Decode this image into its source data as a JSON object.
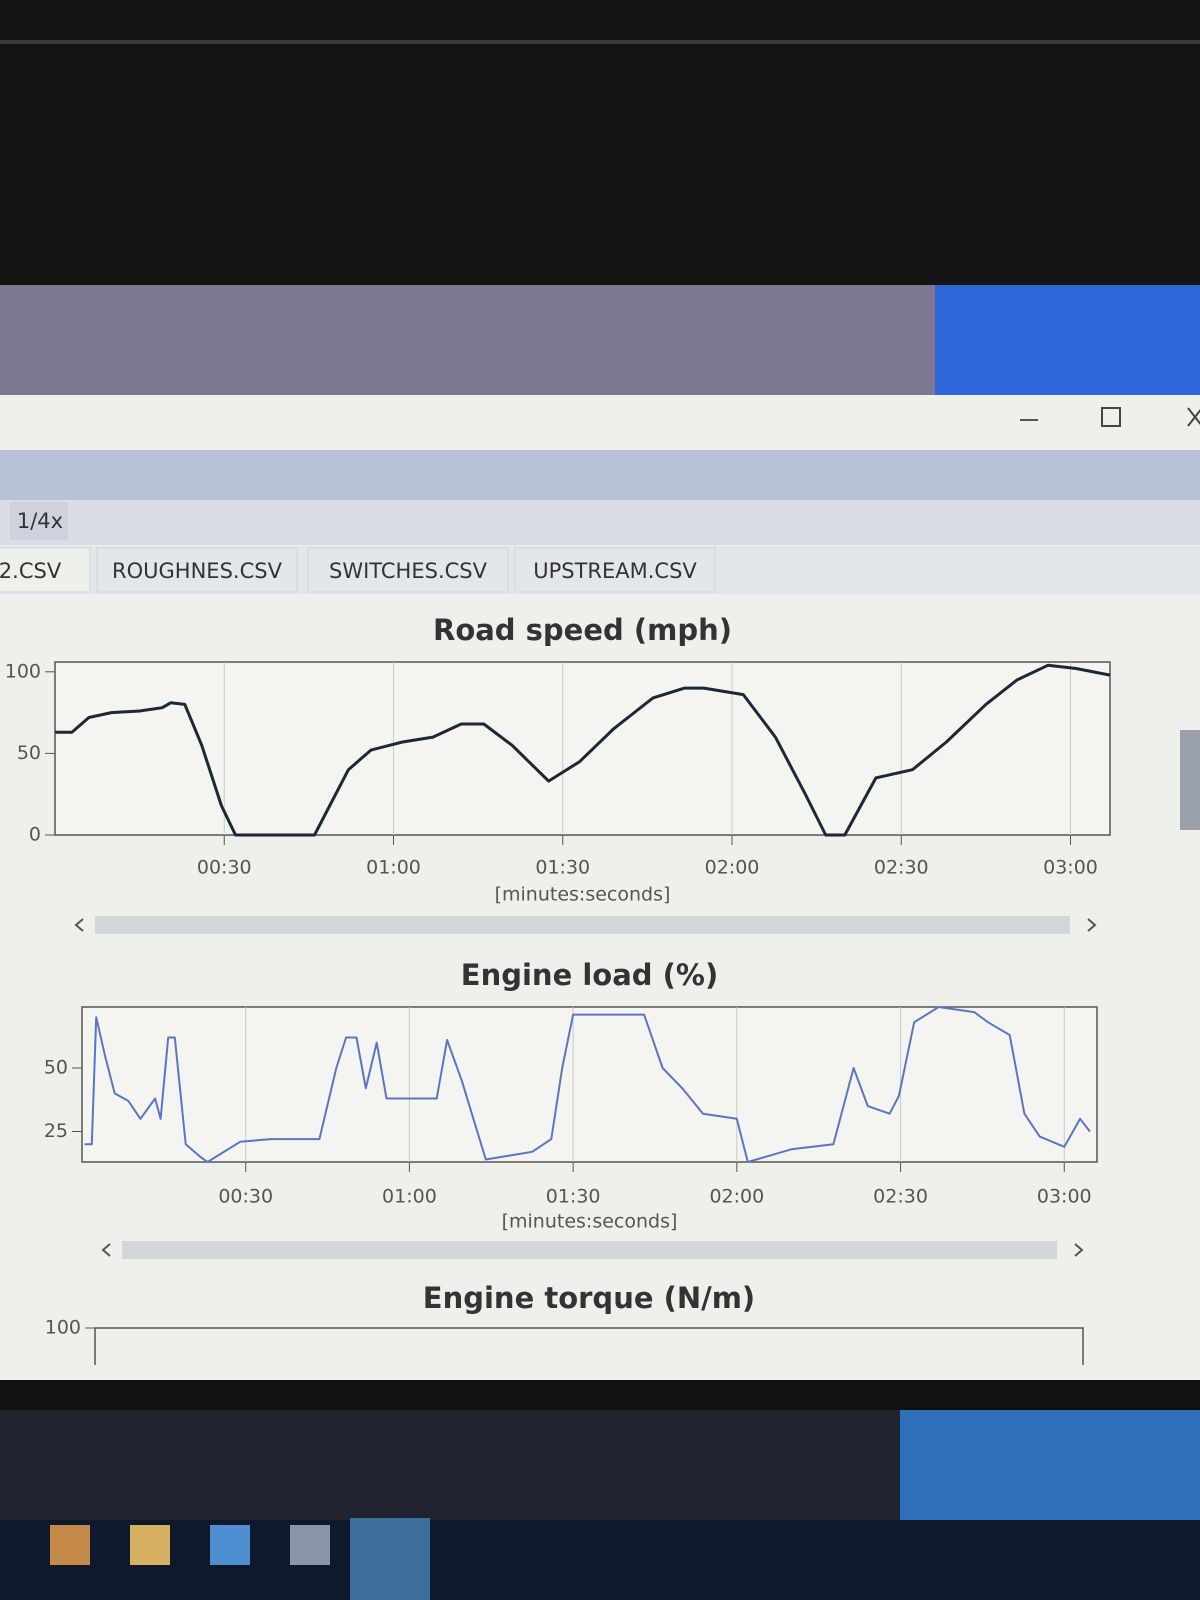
{
  "app": {
    "zoom": "1/4x",
    "tabs": [
      "2.CSV",
      "ROUGHNES.CSV",
      "SWITCHES.CSV",
      "UPSTREAM.CSV"
    ]
  },
  "chart_data": [
    {
      "type": "line",
      "title": "Road speed (mph)",
      "x_label": "[minutes:seconds]",
      "x": [
        0,
        3,
        6,
        10,
        15,
        19,
        20.5,
        23,
        26,
        29.5,
        32,
        36.6,
        46,
        52,
        56,
        61.6,
        67,
        72,
        76,
        81,
        87.5,
        93,
        99,
        106,
        111.6,
        115,
        122,
        127.7,
        133,
        136.6,
        140,
        145.5,
        152,
        158,
        165,
        170.5,
        176,
        181,
        187
      ],
      "series": [
        {
          "color": "#1c2836",
          "values": [
            63,
            63,
            72,
            75,
            76,
            78,
            81,
            80,
            55,
            18,
            0,
            0,
            0,
            40,
            52,
            57,
            60,
            68,
            68,
            55,
            33,
            45,
            65,
            84,
            90,
            90,
            86,
            60,
            25,
            0,
            0,
            35,
            40,
            57,
            80,
            95,
            104,
            102,
            98
          ]
        }
      ],
      "xlim": [
        0,
        187
      ],
      "xticks": [
        {
          "value": 30,
          "label": "00:30"
        },
        {
          "value": 60,
          "label": "01:00"
        },
        {
          "value": 90,
          "label": "01:30"
        },
        {
          "value": 120,
          "label": "02:00"
        },
        {
          "value": 150,
          "label": "02:30"
        },
        {
          "value": 180,
          "label": "03:00"
        }
      ],
      "ylim": [
        0,
        106
      ],
      "yticks": [
        0,
        50,
        100
      ]
    },
    {
      "type": "line",
      "title": "Engine load (%)",
      "x_label": "[minutes:seconds]",
      "x": [
        0.5,
        1.8,
        2.6,
        4.2,
        6,
        8.5,
        10.7,
        13.4,
        14.4,
        15.8,
        17,
        19,
        21.7,
        23,
        29,
        34.6,
        43.5,
        46.6,
        48.4,
        50.3,
        52,
        54,
        55.8,
        58.6,
        65,
        66.9,
        69.6,
        74,
        82.5,
        86,
        88,
        90,
        103,
        106.4,
        110,
        113.8,
        120,
        122,
        130,
        137.7,
        141.4,
        144,
        148,
        149.7,
        152.5,
        157,
        163.5,
        166,
        170,
        172.7,
        175.5,
        180,
        182.9,
        184.7
      ],
      "series": [
        {
          "color": "#5a74c8",
          "values": [
            20,
            20,
            70,
            55,
            40,
            37,
            30,
            38,
            30,
            62,
            62,
            20,
            15,
            13,
            21,
            22,
            22,
            50,
            62,
            62,
            42,
            60,
            38,
            38,
            38,
            61,
            45,
            14,
            17,
            22,
            50,
            71,
            71,
            50,
            42,
            32,
            30,
            13,
            18,
            20,
            50,
            35,
            32,
            39,
            68,
            74,
            72,
            68,
            63,
            32,
            23,
            19,
            30,
            25
          ]
        }
      ],
      "xlim": [
        0,
        186
      ],
      "xticks": [
        {
          "value": 30,
          "label": "00:30"
        },
        {
          "value": 60,
          "label": "01:00"
        },
        {
          "value": 90,
          "label": "01:30"
        },
        {
          "value": 120,
          "label": "02:00"
        },
        {
          "value": 150,
          "label": "02:30"
        },
        {
          "value": 180,
          "label": "03:00"
        }
      ],
      "ylim": [
        13,
        74
      ],
      "yticks": [
        25,
        50
      ]
    },
    {
      "type": "line",
      "title": "Engine torque (N/m)",
      "yticks": [
        100
      ]
    }
  ]
}
